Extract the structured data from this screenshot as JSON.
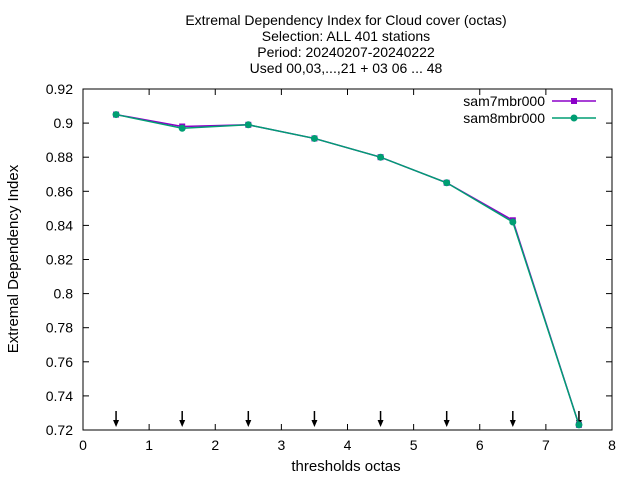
{
  "chart_data": {
    "type": "line",
    "title_lines": [
      "Extremal Dependency Index  for Cloud cover (octas)",
      "Selection: ALL    401 stations",
      "Period: 20240207-20240222",
      "Used 00,03,...,21 + 03 06 ... 48"
    ],
    "xlabel": "thresholds octas",
    "ylabel": "Extremal Dependency Index",
    "xlim": [
      0,
      8
    ],
    "ylim": [
      0.72,
      0.92
    ],
    "xticks": [
      0,
      1,
      2,
      3,
      4,
      5,
      6,
      7,
      8
    ],
    "xtick_labels": [
      "0",
      "1",
      "2",
      "3",
      "4",
      "5",
      "6",
      "7",
      "8"
    ],
    "yticks": [
      0.72,
      0.74,
      0.76,
      0.78,
      0.8,
      0.82,
      0.84,
      0.86,
      0.88,
      0.9,
      0.92
    ],
    "ytick_labels": [
      "0.72",
      "0.74",
      "0.76",
      "0.78",
      "0.8",
      "0.82",
      "0.84",
      "0.86",
      "0.88",
      "0.9",
      "0.92"
    ],
    "grid": false,
    "legend_position": "top-right",
    "series": [
      {
        "name": "sam7mbr000",
        "color": "#8b00c8",
        "x": [
          0.5,
          1.5,
          2.5,
          3.5,
          4.5,
          5.5,
          6.5,
          7.5
        ],
        "values": [
          0.905,
          0.898,
          0.899,
          0.891,
          0.88,
          0.865,
          0.843,
          0.723
        ]
      },
      {
        "name": "sam8mbr000",
        "color": "#009e73",
        "x": [
          0.5,
          1.5,
          2.5,
          3.5,
          4.5,
          5.5,
          6.5,
          7.5
        ],
        "values": [
          0.905,
          0.897,
          0.899,
          0.891,
          0.88,
          0.865,
          0.842,
          0.723
        ]
      }
    ],
    "arrow_markers_x": [
      0.5,
      1.5,
      2.5,
      3.5,
      4.5,
      5.5,
      6.5,
      7.5
    ]
  }
}
